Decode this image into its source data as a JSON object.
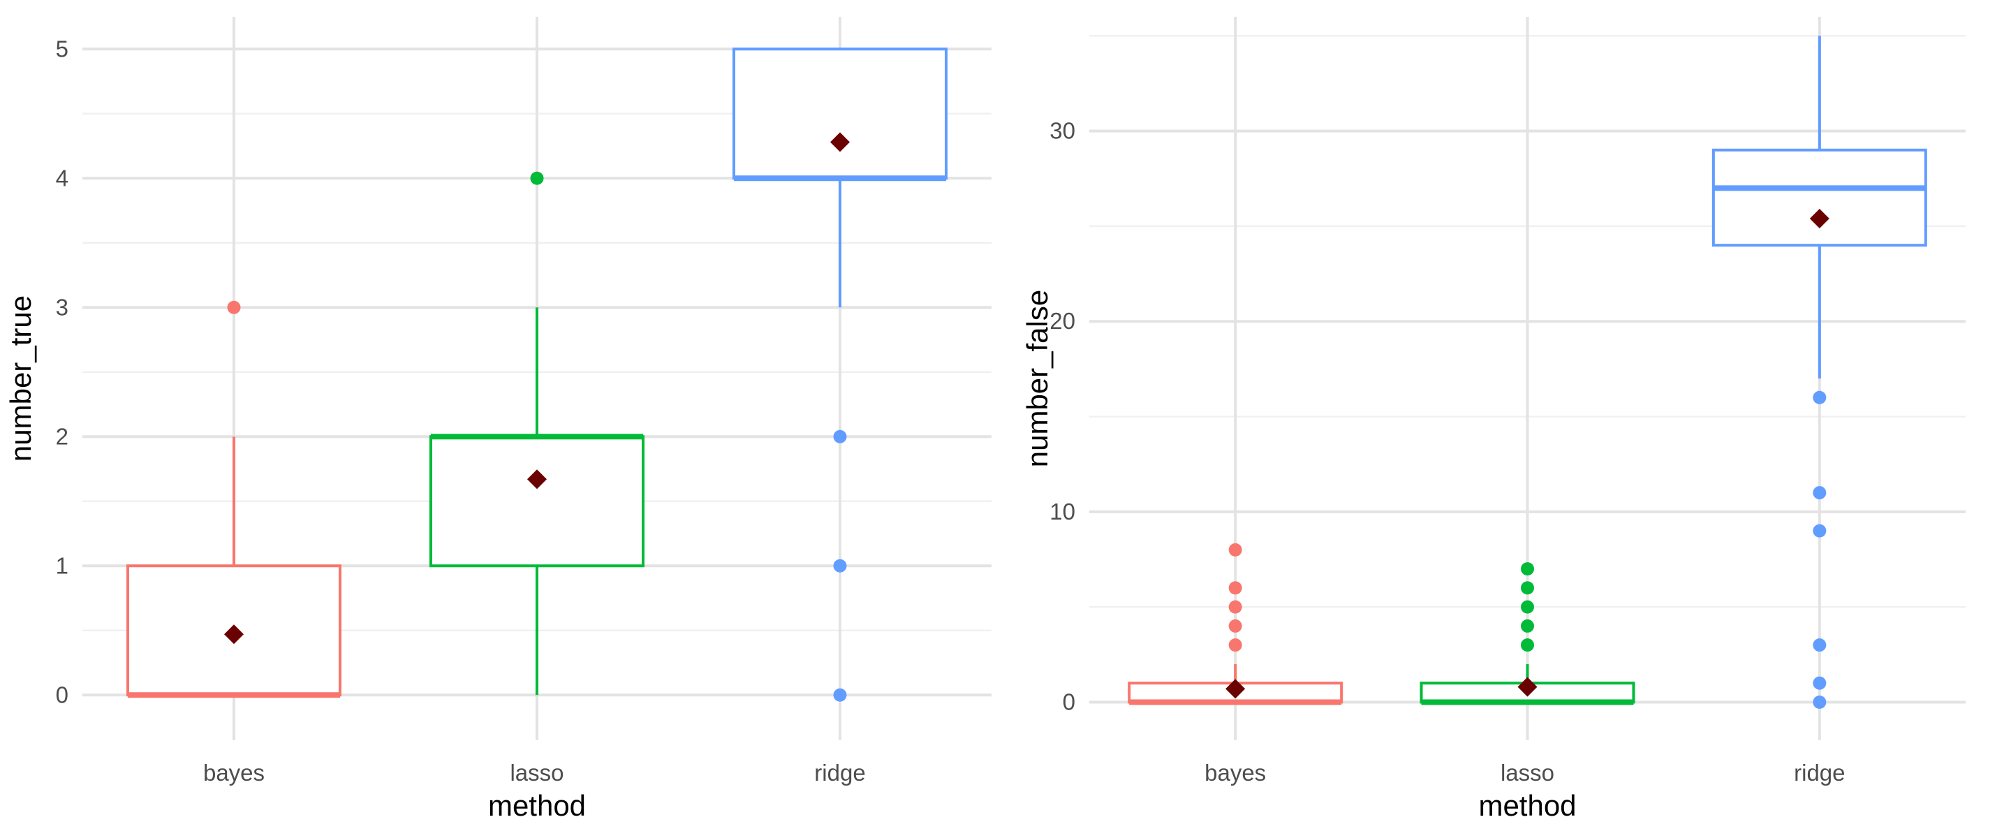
{
  "chart_data": [
    {
      "type": "box",
      "title": "",
      "xlabel": "method",
      "ylabel": "number_true",
      "categories": [
        "bayes",
        "lasso",
        "ridge"
      ],
      "ylim": [
        -0.35,
        5.25
      ],
      "yticks": [
        0,
        1,
        2,
        3,
        4,
        5
      ],
      "grid": true,
      "legend": "none",
      "boxes": [
        {
          "category": "bayes",
          "color": "#F8766D",
          "q1": 0,
          "median": 0,
          "q3": 1,
          "whisker_low": 0,
          "whisker_high": 2,
          "mean": 0.47,
          "outliers": [
            3
          ]
        },
        {
          "category": "lasso",
          "color": "#00BA38",
          "q1": 1,
          "median": 2,
          "q3": 2,
          "whisker_low": 0,
          "whisker_high": 3,
          "mean": 1.67,
          "outliers": [
            4
          ]
        },
        {
          "category": "ridge",
          "color": "#619CFF",
          "q1": 4,
          "median": 4,
          "q3": 5,
          "whisker_low": 3,
          "whisker_high": 5,
          "mean": 4.28,
          "outliers": [
            0,
            1,
            2
          ]
        }
      ],
      "mean_marker": {
        "shape": "diamond",
        "color": "#6B0000"
      }
    },
    {
      "type": "box",
      "title": "",
      "xlabel": "method",
      "ylabel": "number_false",
      "categories": [
        "bayes",
        "lasso",
        "ridge"
      ],
      "ylim": [
        -2.0,
        36.0
      ],
      "yticks": [
        0,
        10,
        20,
        30
      ],
      "grid": true,
      "legend": "none",
      "boxes": [
        {
          "category": "bayes",
          "color": "#F8766D",
          "q1": 0,
          "median": 0,
          "q3": 1,
          "whisker_low": 0,
          "whisker_high": 2,
          "mean": 0.7,
          "outliers": [
            3,
            4,
            5,
            6,
            8
          ]
        },
        {
          "category": "lasso",
          "color": "#00BA38",
          "q1": 0,
          "median": 0,
          "q3": 1,
          "whisker_low": 0,
          "whisker_high": 2,
          "mean": 0.8,
          "outliers": [
            3,
            4,
            5,
            6,
            7
          ]
        },
        {
          "category": "ridge",
          "color": "#619CFF",
          "q1": 24,
          "median": 27,
          "q3": 29,
          "whisker_low": 17,
          "whisker_high": 35,
          "mean": 25.4,
          "outliers": [
            0,
            1,
            3,
            9,
            11,
            16
          ]
        }
      ],
      "mean_marker": {
        "shape": "diamond",
        "color": "#6B0000"
      }
    }
  ]
}
